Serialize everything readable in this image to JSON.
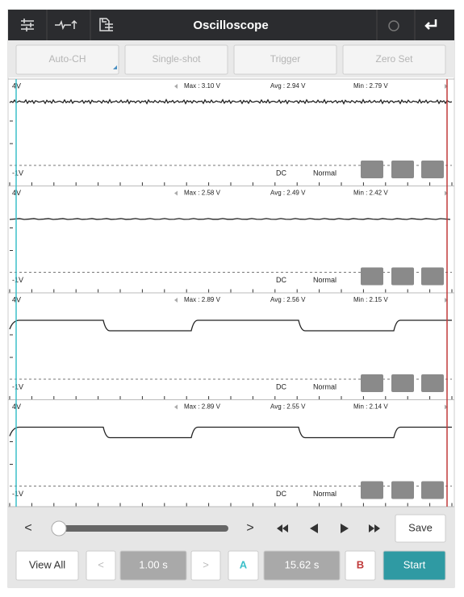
{
  "header": {
    "title": "Oscilloscope"
  },
  "buttons": [
    "Auto-CH",
    "Single-shot",
    "Trigger",
    "Zero Set"
  ],
  "channels": [
    {
      "top": "4V",
      "max": "Max : 3.10 V",
      "avg": "Avg : 2.94 V",
      "min": "Min : 2.79 V",
      "bottom": "-1V",
      "coupling": "DC",
      "mode": "Normal"
    },
    {
      "top": "4V",
      "max": "Max : 2.58 V",
      "avg": "Avg : 2.49 V",
      "min": "Min : 2.42 V",
      "bottom": "-1V",
      "coupling": "DC",
      "mode": "Normal"
    },
    {
      "top": "4V",
      "max": "Max : 2.89 V",
      "avg": "Avg : 2.56 V",
      "min": "Min : 2.15 V",
      "bottom": "-1V",
      "coupling": "DC",
      "mode": "Normal"
    },
    {
      "top": "4V",
      "max": "Max : 2.89 V",
      "avg": "Avg : 2.55 V",
      "min": "Min : 2.14 V",
      "bottom": "-1V",
      "coupling": "DC",
      "mode": "Normal"
    }
  ],
  "controls": {
    "prev": "<",
    "next": ">",
    "save": "Save",
    "view_all": "View All",
    "step_prev": "<",
    "step": "1.00 s",
    "step_next": ">",
    "cursor_a": "A",
    "span": "15.62 s",
    "cursor_b": "B",
    "start": "Start"
  }
}
